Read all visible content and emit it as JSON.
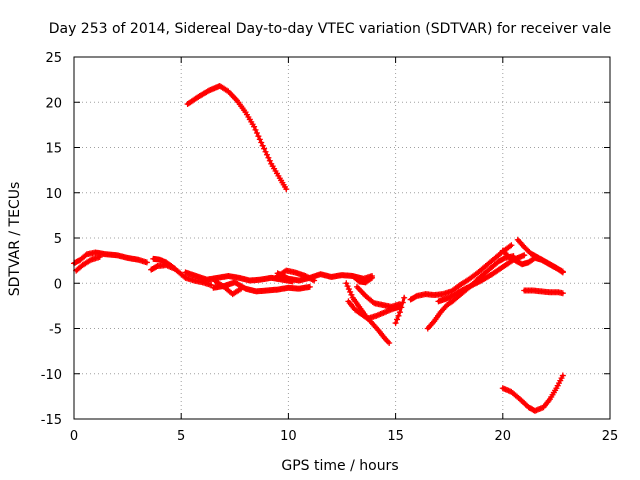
{
  "chart_data": {
    "type": "scatter",
    "title": "Day 253 of 2014, Sidereal Day-to-day VTEC variation (SDTVAR) for receiver vale",
    "xlabel": "GPS time / hours",
    "ylabel": "SDTVAR / TECUs",
    "xlim": [
      0,
      25
    ],
    "ylim": [
      -15,
      25
    ],
    "xticks": [
      0,
      5,
      10,
      15,
      20,
      25
    ],
    "yticks": [
      -15,
      -10,
      -5,
      0,
      5,
      10,
      15,
      20,
      25
    ],
    "grid": true,
    "marker": "plus",
    "color": "#ff0000",
    "series": [
      {
        "name": "s1",
        "points": [
          [
            0.0,
            2.2
          ],
          [
            0.3,
            2.6
          ],
          [
            0.6,
            3.2
          ],
          [
            1.0,
            3.4
          ],
          [
            1.5,
            3.2
          ],
          [
            2.0,
            3.1
          ],
          [
            2.5,
            2.8
          ],
          [
            3.0,
            2.6
          ],
          [
            3.4,
            2.3
          ]
        ]
      },
      {
        "name": "s2",
        "points": [
          [
            0.1,
            1.4
          ],
          [
            0.4,
            2.0
          ],
          [
            0.8,
            2.6
          ],
          [
            1.2,
            2.9
          ]
        ]
      },
      {
        "name": "s3",
        "points": [
          [
            3.7,
            2.7
          ],
          [
            4.0,
            2.6
          ],
          [
            4.3,
            2.3
          ],
          [
            4.6,
            1.8
          ],
          [
            4.9,
            1.2
          ],
          [
            5.2,
            0.6
          ],
          [
            5.6,
            0.3
          ],
          [
            6.0,
            0.1
          ],
          [
            6.4,
            -0.2
          ]
        ]
      },
      {
        "name": "s4",
        "points": [
          [
            3.6,
            1.5
          ],
          [
            3.9,
            1.9
          ],
          [
            4.3,
            2.0
          ],
          [
            4.7,
            1.6
          ]
        ]
      },
      {
        "name": "s5",
        "points": [
          [
            5.3,
            19.8
          ],
          [
            5.8,
            20.6
          ],
          [
            6.3,
            21.3
          ],
          [
            6.8,
            21.8
          ],
          [
            7.2,
            21.2
          ],
          [
            7.6,
            20.2
          ],
          [
            8.0,
            18.9
          ],
          [
            8.4,
            17.3
          ],
          [
            8.8,
            15.2
          ],
          [
            9.2,
            13.2
          ],
          [
            9.6,
            11.6
          ],
          [
            9.9,
            10.4
          ]
        ]
      },
      {
        "name": "s6",
        "points": [
          [
            5.2,
            1.2
          ],
          [
            5.7,
            0.8
          ],
          [
            6.2,
            0.4
          ],
          [
            6.7,
            0.6
          ],
          [
            7.2,
            0.8
          ],
          [
            7.7,
            0.6
          ],
          [
            8.2,
            0.3
          ],
          [
            8.7,
            0.4
          ],
          [
            9.2,
            0.6
          ],
          [
            9.7,
            0.4
          ],
          [
            10.2,
            0.2
          ]
        ]
      },
      {
        "name": "s7",
        "points": [
          [
            6.5,
            -0.5
          ],
          [
            7.0,
            -0.3
          ],
          [
            7.5,
            0.1
          ],
          [
            8.0,
            -0.6
          ],
          [
            8.5,
            -0.9
          ],
          [
            9.0,
            -0.8
          ],
          [
            9.5,
            -0.7
          ],
          [
            10.0,
            -0.5
          ],
          [
            10.5,
            -0.6
          ],
          [
            11.0,
            -0.4
          ]
        ]
      },
      {
        "name": "s8",
        "points": [
          [
            6.6,
            0.2
          ],
          [
            7.0,
            -0.4
          ],
          [
            7.4,
            -1.2
          ],
          [
            7.8,
            -0.6
          ]
        ]
      },
      {
        "name": "s9",
        "points": [
          [
            9.5,
            1.1
          ],
          [
            10.0,
            0.5
          ],
          [
            10.5,
            0.3
          ],
          [
            11.0,
            0.6
          ],
          [
            11.5,
            1.0
          ],
          [
            12.0,
            0.7
          ],
          [
            12.5,
            0.9
          ],
          [
            13.0,
            0.8
          ],
          [
            13.5,
            0.5
          ],
          [
            13.9,
            0.8
          ]
        ]
      },
      {
        "name": "s10",
        "points": [
          [
            9.4,
            0.6
          ],
          [
            9.9,
            1.4
          ],
          [
            10.3,
            1.2
          ],
          [
            10.8,
            0.8
          ],
          [
            11.2,
            0.3
          ]
        ]
      },
      {
        "name": "s11",
        "points": [
          [
            12.7,
            0.0
          ],
          [
            13.0,
            -1.6
          ],
          [
            13.3,
            -2.6
          ],
          [
            13.6,
            -3.6
          ],
          [
            13.9,
            -4.4
          ],
          [
            14.2,
            -5.2
          ],
          [
            14.5,
            -6.1
          ],
          [
            14.7,
            -6.6
          ]
        ]
      },
      {
        "name": "s12",
        "points": [
          [
            12.8,
            -2.0
          ],
          [
            13.1,
            -2.9
          ],
          [
            13.4,
            -3.4
          ],
          [
            13.7,
            -3.9
          ],
          [
            14.1,
            -3.6
          ],
          [
            14.5,
            -3.2
          ],
          [
            14.9,
            -2.8
          ],
          [
            15.2,
            -2.6
          ]
        ]
      },
      {
        "name": "s13",
        "points": [
          [
            13.2,
            -0.4
          ],
          [
            13.6,
            -1.4
          ],
          [
            14.0,
            -2.2
          ],
          [
            14.4,
            -2.4
          ],
          [
            14.8,
            -2.6
          ],
          [
            15.2,
            -2.3
          ]
        ]
      },
      {
        "name": "s14",
        "points": [
          [
            13.0,
            0.8
          ],
          [
            13.3,
            0.2
          ],
          [
            13.6,
            0.1
          ],
          [
            13.9,
            0.6
          ]
        ]
      },
      {
        "name": "s15",
        "points": [
          [
            15.0,
            -4.4
          ],
          [
            15.2,
            -3.2
          ],
          [
            15.4,
            -1.6
          ]
        ]
      },
      {
        "name": "s16",
        "points": [
          [
            15.7,
            -1.8
          ],
          [
            16.0,
            -1.4
          ],
          [
            16.4,
            -1.2
          ],
          [
            16.8,
            -1.3
          ],
          [
            17.2,
            -1.2
          ],
          [
            17.6,
            -0.9
          ],
          [
            18.0,
            -0.2
          ],
          [
            18.4,
            0.4
          ],
          [
            18.8,
            1.1
          ],
          [
            19.2,
            1.9
          ],
          [
            19.6,
            2.7
          ],
          [
            20.0,
            3.5
          ],
          [
            20.4,
            4.2
          ]
        ]
      },
      {
        "name": "s17",
        "points": [
          [
            16.5,
            -5.0
          ],
          [
            16.8,
            -4.2
          ],
          [
            17.1,
            -3.2
          ],
          [
            17.4,
            -2.4
          ],
          [
            17.7,
            -1.9
          ],
          [
            18.0,
            -1.3
          ],
          [
            18.3,
            -0.7
          ],
          [
            18.6,
            -0.1
          ],
          [
            18.9,
            0.6
          ],
          [
            19.2,
            1.2
          ],
          [
            19.5,
            1.8
          ],
          [
            19.8,
            2.4
          ],
          [
            20.1,
            2.8
          ],
          [
            20.5,
            3.0
          ]
        ]
      },
      {
        "name": "s18",
        "points": [
          [
            17.0,
            -2.0
          ],
          [
            17.5,
            -1.6
          ],
          [
            18.0,
            -0.9
          ],
          [
            18.5,
            -0.3
          ],
          [
            19.0,
            0.3
          ],
          [
            19.5,
            1.0
          ],
          [
            20.0,
            1.8
          ],
          [
            20.5,
            2.6
          ],
          [
            21.0,
            3.1
          ]
        ]
      },
      {
        "name": "s19",
        "points": [
          [
            20.0,
            3.6
          ],
          [
            20.3,
            2.9
          ],
          [
            20.6,
            2.5
          ],
          [
            20.9,
            2.1
          ],
          [
            21.2,
            2.3
          ],
          [
            21.5,
            2.8
          ],
          [
            21.8,
            2.6
          ],
          [
            22.1,
            2.2
          ],
          [
            22.4,
            1.8
          ],
          [
            22.8,
            1.3
          ]
        ]
      },
      {
        "name": "s20",
        "points": [
          [
            20.7,
            4.8
          ],
          [
            21.0,
            4.0
          ],
          [
            21.3,
            3.3
          ],
          [
            21.6,
            2.9
          ],
          [
            21.9,
            2.5
          ],
          [
            22.2,
            2.1
          ],
          [
            22.5,
            1.7
          ],
          [
            22.8,
            1.2
          ]
        ]
      },
      {
        "name": "s21",
        "points": [
          [
            21.0,
            -0.8
          ],
          [
            21.4,
            -0.8
          ],
          [
            21.8,
            -0.9
          ],
          [
            22.2,
            -1.0
          ],
          [
            22.6,
            -1.0
          ],
          [
            22.8,
            -1.1
          ]
        ]
      },
      {
        "name": "s22",
        "points": [
          [
            20.0,
            -11.6
          ],
          [
            20.4,
            -12.0
          ],
          [
            20.8,
            -12.8
          ],
          [
            21.2,
            -13.7
          ],
          [
            21.5,
            -14.1
          ],
          [
            21.9,
            -13.7
          ],
          [
            22.2,
            -12.8
          ],
          [
            22.5,
            -11.6
          ],
          [
            22.8,
            -10.2
          ]
        ]
      }
    ]
  }
}
